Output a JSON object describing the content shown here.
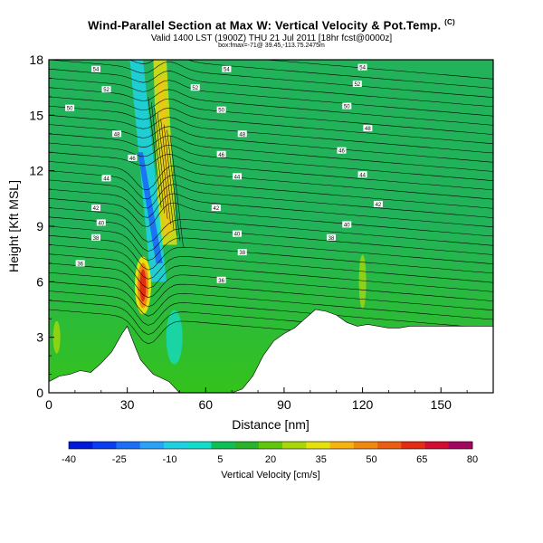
{
  "title_line1": "Wind-Parallel Section at Max W: Vertical Velocity & Pot.Temp.",
  "title_copyright": "(C)",
  "title_line2": "Valid 1400 LST (1900Z) THU 21 Jul 2011 [18hr fcst@0000z]",
  "title_line3": "box:fmax=-71@ 39.45,-113.75.2475m",
  "colors": {
    "bg_high": "#22b35a",
    "bg_low": "#34c21c",
    "terrain": "#ffffff",
    "contour": "#000000",
    "colorbar": [
      "#0019d6",
      "#0a3df0",
      "#1a6ff5",
      "#2aa2f7",
      "#1fd0e0",
      "#14dccb",
      "#0fbf55",
      "#28b32a",
      "#5fc80c",
      "#a7d70a",
      "#e4e10f",
      "#f6b211",
      "#f08812",
      "#ea5d13",
      "#e12e12",
      "#d20d34",
      "#a4065d"
    ]
  },
  "chart_data": {
    "type": "heatmap",
    "xlabel": "Distance [nm]",
    "ylabel": "Height [Kft MSL]",
    "xlim": [
      0,
      170
    ],
    "ylim": [
      0,
      18
    ],
    "xticks": [
      "0",
      "30",
      "60",
      "90",
      "120",
      "150"
    ],
    "yticks": [
      "0",
      "3",
      "6",
      "9",
      "12",
      "15",
      "18"
    ],
    "colorbar": {
      "label": "Vertical Velocity [cm/s]",
      "range": [
        -40,
        80
      ],
      "tick_labels": [
        "-40",
        "-25",
        "-10",
        "5",
        "20",
        "35",
        "50",
        "65",
        "80"
      ]
    },
    "features": {
      "updraft_max_x": 36,
      "updraft_max_y": 5.8,
      "downdraft_band": [
        [
          37,
          12
        ],
        [
          42,
          7
        ]
      ],
      "upper_updraft_band": [
        [
          42,
          16
        ],
        [
          45,
          11
        ]
      ]
    },
    "terrain_profile": {
      "x": [
        0,
        4,
        8,
        12,
        16,
        20,
        24,
        28,
        30,
        33,
        35,
        38,
        40,
        43,
        46,
        50,
        54,
        58,
        62,
        66,
        70,
        74,
        78,
        82,
        86,
        90,
        94,
        98,
        102,
        106,
        110,
        114,
        118,
        122,
        126,
        130,
        134,
        138,
        142,
        146,
        150,
        154,
        158,
        162,
        166,
        170
      ],
      "y": [
        0.6,
        0.9,
        1.0,
        1.2,
        1.1,
        1.6,
        2.2,
        3.2,
        3.6,
        2.5,
        1.8,
        1.3,
        1.0,
        0.8,
        0.6,
        0.0,
        0.0,
        0.0,
        0.0,
        0.0,
        0.0,
        0.2,
        0.9,
        2.0,
        2.8,
        3.2,
        3.5,
        4.0,
        4.5,
        4.4,
        4.2,
        3.8,
        3.6,
        3.7,
        3.6,
        3.5,
        3.5,
        3.6,
        3.6,
        3.6,
        3.6,
        3.6,
        3.6,
        3.6,
        3.6,
        3.6
      ]
    },
    "theta_labels": [
      {
        "text": "36",
        "x": 12,
        "y": 7.0
      },
      {
        "text": "36",
        "x": 66,
        "y": 6.1
      },
      {
        "text": "38",
        "x": 18,
        "y": 8.4
      },
      {
        "text": "38",
        "x": 74,
        "y": 7.6
      },
      {
        "text": "38",
        "x": 108,
        "y": 8.4
      },
      {
        "text": "40",
        "x": 20,
        "y": 9.2
      },
      {
        "text": "40",
        "x": 72,
        "y": 8.6
      },
      {
        "text": "40",
        "x": 114,
        "y": 9.1
      },
      {
        "text": "42",
        "x": 18,
        "y": 10.0
      },
      {
        "text": "42",
        "x": 64,
        "y": 10.0
      },
      {
        "text": "42",
        "x": 126,
        "y": 10.2
      },
      {
        "text": "44",
        "x": 22,
        "y": 11.6
      },
      {
        "text": "44",
        "x": 72,
        "y": 11.7
      },
      {
        "text": "44",
        "x": 120,
        "y": 11.8
      },
      {
        "text": "46",
        "x": 32,
        "y": 12.7
      },
      {
        "text": "46",
        "x": 66,
        "y": 12.9
      },
      {
        "text": "46",
        "x": 112,
        "y": 13.1
      },
      {
        "text": "48",
        "x": 26,
        "y": 14.0
      },
      {
        "text": "48",
        "x": 74,
        "y": 14.0
      },
      {
        "text": "48",
        "x": 122,
        "y": 14.3
      },
      {
        "text": "50",
        "x": 8,
        "y": 15.4
      },
      {
        "text": "50",
        "x": 66,
        "y": 15.3
      },
      {
        "text": "50",
        "x": 114,
        "y": 15.5
      },
      {
        "text": "52",
        "x": 22,
        "y": 16.4
      },
      {
        "text": "52",
        "x": 56,
        "y": 16.5
      },
      {
        "text": "52",
        "x": 118,
        "y": 16.7
      },
      {
        "text": "54",
        "x": 18,
        "y": 17.5
      },
      {
        "text": "54",
        "x": 68,
        "y": 17.5
      },
      {
        "text": "54",
        "x": 120,
        "y": 17.6
      }
    ]
  }
}
